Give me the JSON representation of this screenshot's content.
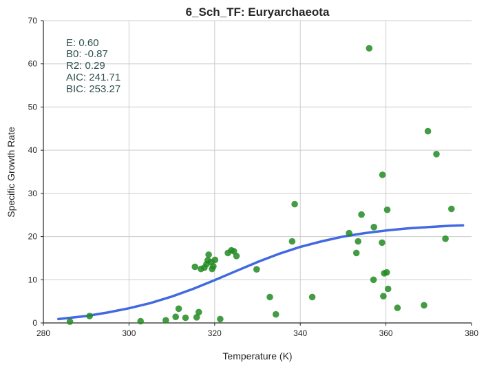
{
  "chart_data": {
    "type": "scatter",
    "title": "6_Sch_TF: Euryarchaeota",
    "xlabel": "Temperature (K)",
    "ylabel": "Specific Growth Rate",
    "xlim": [
      280,
      380
    ],
    "ylim": [
      0,
      70
    ],
    "x_ticks": [
      "280",
      "300",
      "320",
      "340",
      "360",
      "380"
    ],
    "y_ticks": [
      "0",
      "10",
      "20",
      "30",
      "40",
      "50",
      "60",
      "70"
    ],
    "grid": true,
    "colors": {
      "points": "#228B22",
      "fit": "#4169E1",
      "stats_text": "#2F4F4F",
      "grid": "#CCCCCC"
    },
    "annotations": [
      "E:  0.60",
      "B0:  -0.87",
      "R2:  0.29",
      "AIC: 241.71",
      "BIC: 253.27"
    ],
    "points": [
      [
        286.2,
        0.3
      ],
      [
        290.8,
        1.6
      ],
      [
        302.7,
        0.4
      ],
      [
        308.6,
        0.6
      ],
      [
        310.9,
        1.4
      ],
      [
        311.6,
        3.3
      ],
      [
        313.2,
        1.2
      ],
      [
        315.4,
        13.0
      ],
      [
        315.8,
        1.3
      ],
      [
        316.3,
        2.5
      ],
      [
        316.8,
        12.5
      ],
      [
        317.6,
        12.8
      ],
      [
        318.1,
        13.6
      ],
      [
        318.4,
        14.5
      ],
      [
        318.6,
        15.8
      ],
      [
        319.2,
        14.1
      ],
      [
        319.4,
        12.5
      ],
      [
        319.7,
        13.1
      ],
      [
        320.1,
        14.6
      ],
      [
        321.3,
        0.9
      ],
      [
        323.1,
        16.2
      ],
      [
        323.9,
        16.8
      ],
      [
        324.5,
        16.6
      ],
      [
        325.1,
        15.5
      ],
      [
        329.8,
        12.4
      ],
      [
        332.9,
        6.0
      ],
      [
        334.3,
        2.0
      ],
      [
        338.1,
        18.9
      ],
      [
        338.7,
        27.5
      ],
      [
        342.8,
        6.0
      ],
      [
        351.4,
        20.8
      ],
      [
        353.1,
        16.2
      ],
      [
        353.5,
        18.9
      ],
      [
        354.3,
        25.1
      ],
      [
        356.1,
        63.6
      ],
      [
        357.1,
        10.0
      ],
      [
        357.2,
        22.2
      ],
      [
        359.1,
        18.6
      ],
      [
        359.2,
        34.3
      ],
      [
        359.4,
        6.2
      ],
      [
        359.6,
        11.5
      ],
      [
        360.2,
        11.7
      ],
      [
        360.3,
        26.2
      ],
      [
        360.5,
        7.9
      ],
      [
        362.7,
        3.5
      ],
      [
        368.9,
        4.1
      ],
      [
        369.8,
        44.4
      ],
      [
        371.8,
        39.1
      ],
      [
        373.9,
        19.5
      ],
      [
        375.3,
        26.4
      ]
    ],
    "fit_curve": {
      "x": [
        283.5,
        290,
        295,
        300,
        305,
        310,
        315,
        320,
        325,
        330,
        335,
        340,
        345,
        350,
        355,
        360,
        365,
        370,
        375,
        378
      ],
      "y": [
        0.9,
        1.6,
        2.4,
        3.4,
        4.6,
        6.1,
        7.9,
        9.9,
        12.0,
        14.1,
        16.0,
        17.6,
        18.9,
        20.0,
        20.8,
        21.4,
        21.9,
        22.2,
        22.5,
        22.6
      ]
    }
  }
}
